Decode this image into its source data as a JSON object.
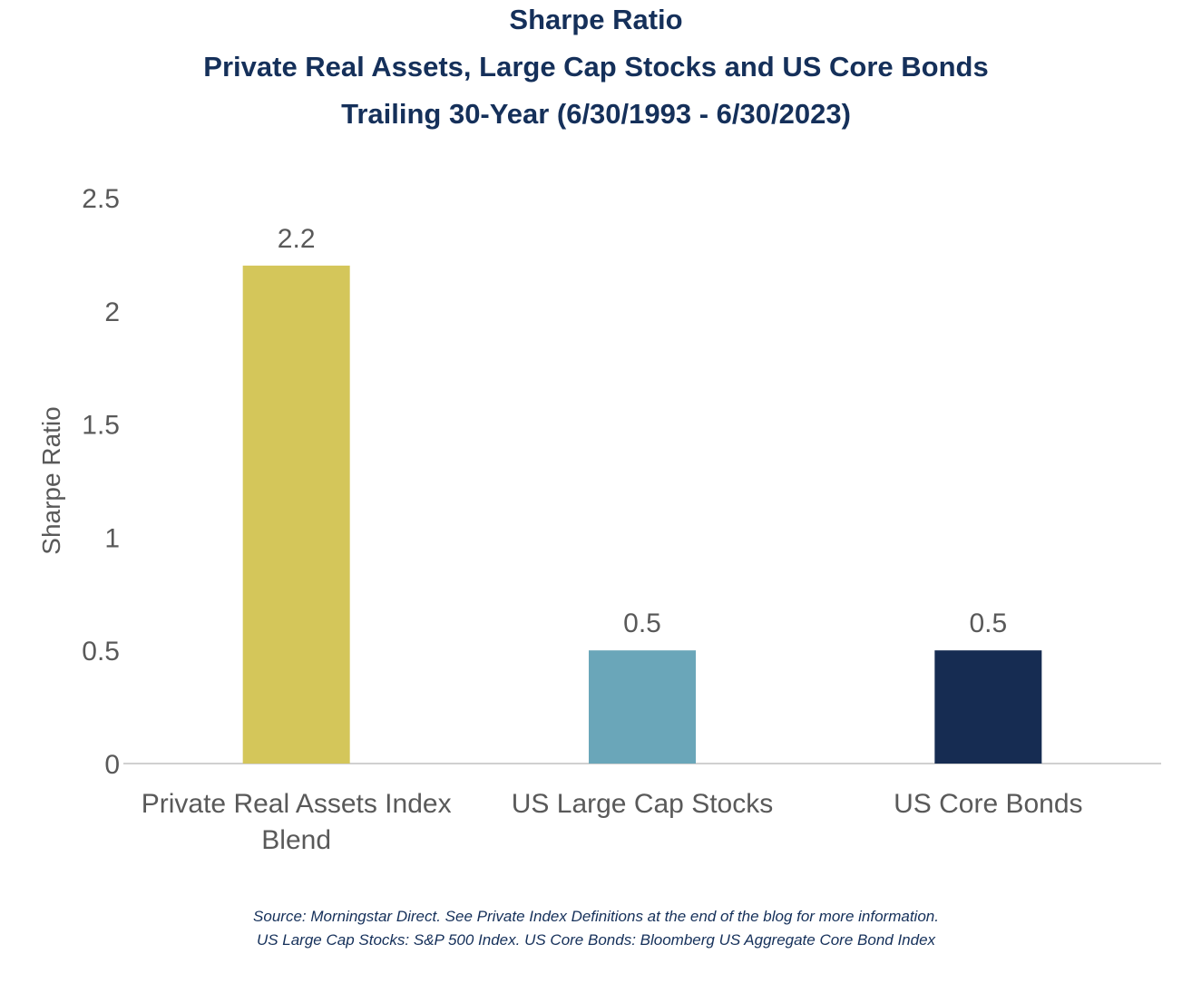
{
  "chart_data": {
    "type": "bar",
    "title": "Sharpe Ratio",
    "subtitle_lines": [
      "Private Real Assets, Large Cap Stocks and US Core Bonds",
      "Trailing 30-Year (6/30/1993 - 6/30/2023)"
    ],
    "ylabel": "Sharpe Ratio",
    "xlabel": "",
    "ylim": [
      0,
      2.5
    ],
    "yticks": [
      "0",
      "0.5",
      "1",
      "1.5",
      "2",
      "2.5"
    ],
    "ytick_values": [
      0,
      0.5,
      1,
      1.5,
      2,
      2.5
    ],
    "categories": [
      [
        "Private Real Assets Index",
        "Blend"
      ],
      [
        "US Large Cap Stocks"
      ],
      [
        "US Core Bonds"
      ]
    ],
    "values": [
      2.2,
      0.5,
      0.5
    ],
    "data_labels": [
      "2.2",
      "0.5",
      "0.5"
    ],
    "colors": [
      "#d4c65a",
      "#6aa6b9",
      "#162c52"
    ],
    "grid": false,
    "legend": "none"
  },
  "footer": {
    "source_line1": "Source: Morningstar Direct. See Private Index Definitions at the end of the blog for more information.",
    "source_line2": "US Large Cap Stocks: S&P 500 Index. US Core Bonds: Bloomberg US Aggregate Core Bond Index"
  }
}
